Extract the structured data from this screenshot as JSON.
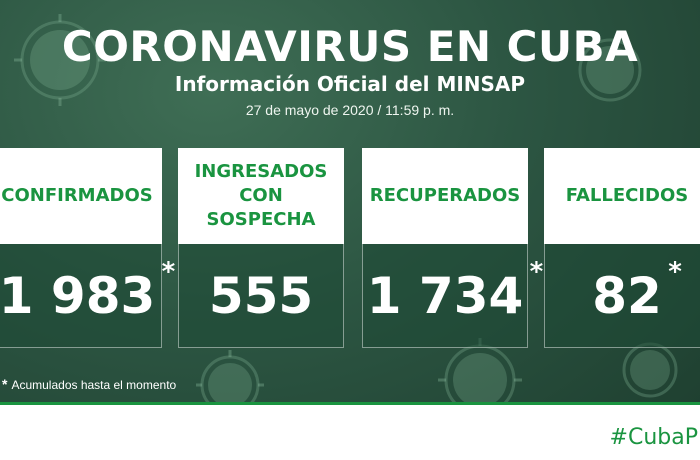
{
  "header": {
    "title": "CORONAVIRUS EN CUBA",
    "subtitle": "Información Oficial del MINSAP",
    "date": "27 de mayo de 2020 / 11:59 p. m."
  },
  "cards": [
    {
      "label": "CONFIRMADOS",
      "value": "1 983",
      "asterisk": "*"
    },
    {
      "label_line1": "INGRESADOS",
      "label_line2": "CON SOSPECHA",
      "value": "555"
    },
    {
      "label": "RECUPERADOS",
      "value": "1 734",
      "asterisk": "*"
    },
    {
      "label": "FALLECIDOS",
      "value": "82",
      "asterisk": "*"
    }
  ],
  "footnote": {
    "star": "*",
    "text": "Acumulados hasta el momento"
  },
  "hashtag": "#CubaP",
  "colors": {
    "accent_green": "#1a9440",
    "background": "#2c5542"
  }
}
